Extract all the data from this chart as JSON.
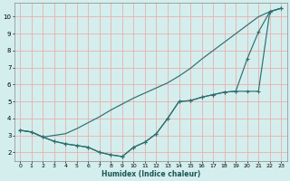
{
  "background_color": "#d4eeed",
  "grid_color": "#e8b0b0",
  "line_color": "#2d7070",
  "xlabel": "Humidex (Indice chaleur)",
  "xlim": [
    -0.5,
    23.5
  ],
  "ylim": [
    1.5,
    10.8
  ],
  "xticks": [
    0,
    1,
    2,
    3,
    4,
    5,
    6,
    7,
    8,
    9,
    10,
    11,
    12,
    13,
    14,
    15,
    16,
    17,
    18,
    19,
    20,
    21,
    22,
    23
  ],
  "yticks": [
    2,
    3,
    4,
    5,
    6,
    7,
    8,
    9,
    10
  ],
  "line1_x": [
    0,
    1,
    2,
    3,
    4,
    5,
    6,
    7,
    8,
    9,
    10,
    11,
    12,
    13,
    14,
    15,
    16,
    17,
    18,
    19,
    20,
    21,
    22,
    23
  ],
  "line1_y": [
    3.3,
    3.2,
    2.9,
    3.0,
    3.1,
    3.4,
    3.75,
    4.1,
    4.5,
    4.85,
    5.2,
    5.5,
    5.8,
    6.1,
    6.5,
    6.95,
    7.5,
    8.0,
    8.5,
    9.0,
    9.5,
    10.0,
    10.3,
    10.5
  ],
  "line2_x": [
    0,
    1,
    2,
    3,
    4,
    5,
    6,
    7,
    8,
    9,
    10,
    11,
    12,
    13,
    14,
    15,
    16,
    17,
    18,
    19,
    20,
    21,
    22,
    23
  ],
  "line2_y": [
    3.3,
    3.2,
    2.9,
    2.65,
    2.5,
    2.4,
    2.3,
    2.0,
    1.85,
    1.75,
    2.3,
    2.6,
    3.1,
    4.0,
    5.0,
    5.05,
    5.25,
    5.4,
    5.55,
    5.6,
    5.6,
    5.6,
    10.3,
    10.5
  ],
  "line3_x": [
    0,
    1,
    2,
    3,
    4,
    5,
    6,
    7,
    8,
    9,
    10,
    11,
    12,
    13,
    14,
    15,
    16,
    17,
    18,
    19,
    20,
    21,
    22,
    23
  ],
  "line3_y": [
    3.3,
    3.2,
    2.9,
    2.65,
    2.5,
    2.4,
    2.3,
    2.0,
    1.85,
    1.75,
    2.3,
    2.6,
    3.1,
    4.0,
    5.0,
    5.05,
    5.25,
    5.4,
    5.55,
    5.6,
    7.5,
    9.1,
    10.3,
    10.5
  ]
}
